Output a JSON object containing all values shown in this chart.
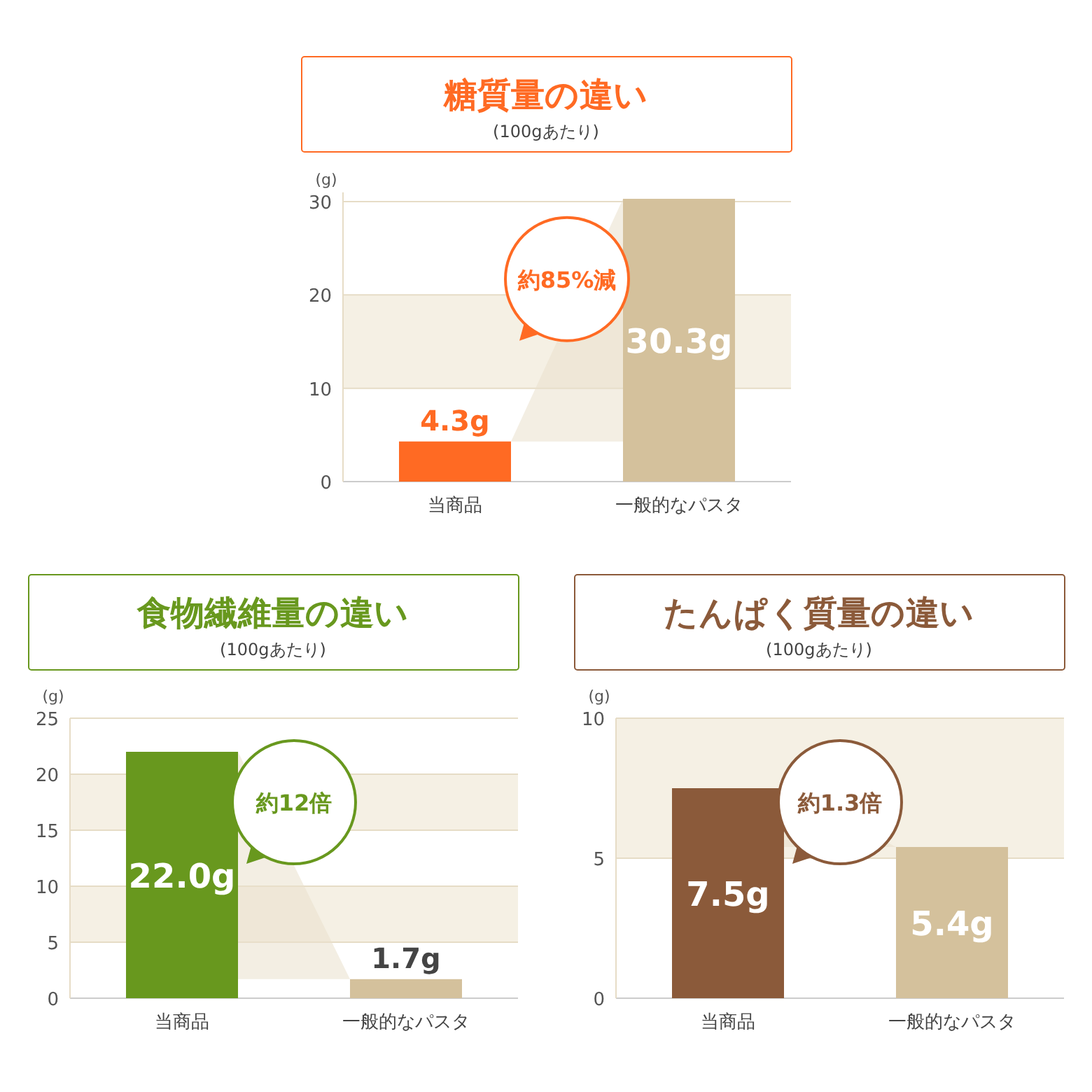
{
  "chart_data": [
    {
      "type": "bar",
      "title": "糖質量の違い",
      "subtitle": "(100gあたり)",
      "ylabel": "(g)",
      "categories": [
        "当商品",
        "一般的なパスタ"
      ],
      "values": [
        4.3,
        30.3
      ],
      "colors": [
        "#ff6a23",
        "#d4c19c"
      ],
      "value_labels": [
        "4.3g",
        "30.3g"
      ],
      "ylim": [
        0,
        31
      ],
      "yticks": [
        0,
        10,
        20,
        30
      ],
      "grid": "y",
      "bands": [
        {
          "axis": "y",
          "from": 10,
          "to": 20,
          "color": "#f5f0e4"
        }
      ],
      "annotations": [
        "約85%減"
      ]
    },
    {
      "type": "bar",
      "title": "食物繊維量の違い",
      "subtitle": "(100gあたり)",
      "ylabel": "(g)",
      "categories": [
        "当商品",
        "一般的なパスタ"
      ],
      "values": [
        22.0,
        1.7
      ],
      "colors": [
        "#68981e",
        "#d4c19c"
      ],
      "value_labels": [
        "22.0g",
        "1.7g"
      ],
      "ylim": [
        0,
        25
      ],
      "yticks": [
        0,
        5,
        10,
        15,
        20,
        25
      ],
      "grid": "y",
      "bands": [
        {
          "axis": "y",
          "from": 5,
          "to": 10,
          "color": "#f5f0e4"
        },
        {
          "axis": "y",
          "from": 15,
          "to": 20,
          "color": "#f5f0e4"
        }
      ],
      "annotations": [
        "約12倍"
      ]
    },
    {
      "type": "bar",
      "title": "たんぱく質量の違い",
      "subtitle": "(100gあたり)",
      "ylabel": "(g)",
      "categories": [
        "当商品",
        "一般的なパスタ"
      ],
      "values": [
        7.5,
        5.4
      ],
      "colors": [
        "#8b5a3a",
        "#d4c19c"
      ],
      "value_labels": [
        "7.5g",
        "5.4g"
      ],
      "ylim": [
        0,
        10
      ],
      "yticks": [
        0,
        5,
        10
      ],
      "grid": "y",
      "bands": [
        {
          "axis": "y",
          "from": 5,
          "to": 10,
          "color": "#f5f0e4"
        }
      ],
      "annotations": [
        "約1.3倍"
      ]
    }
  ]
}
